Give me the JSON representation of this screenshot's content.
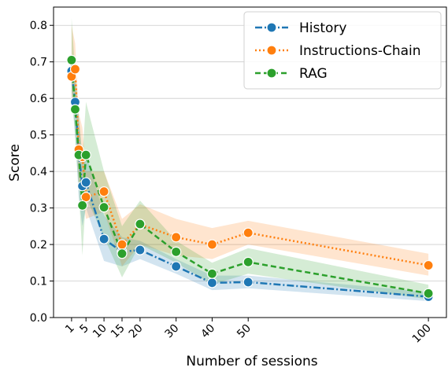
{
  "chart_data": {
    "type": "line",
    "title": "",
    "xlabel": "Number of sessions",
    "ylabel": "Score",
    "x_ticks": [
      1,
      5,
      10,
      15,
      20,
      30,
      40,
      50,
      100
    ],
    "y_ticks": [
      0.0,
      0.1,
      0.2,
      0.3,
      0.4,
      0.5,
      0.6,
      0.7,
      0.8
    ],
    "xlim": [
      -4,
      105
    ],
    "ylim": [
      0,
      0.85
    ],
    "grid": "horizontal",
    "legend_position": "top-right",
    "series": [
      {
        "name": "History",
        "color": "#1f77b4",
        "linestyle": "dashdot",
        "x": [
          1,
          2,
          3,
          4,
          5,
          10,
          15,
          20,
          30,
          40,
          50,
          100
        ],
        "y": [
          0.675,
          0.59,
          0.45,
          0.36,
          0.37,
          0.215,
          0.18,
          0.185,
          0.14,
          0.095,
          0.097,
          0.057
        ],
        "ci_low": [
          0.62,
          0.5,
          0.33,
          0.25,
          0.3,
          0.155,
          0.14,
          0.16,
          0.12,
          0.075,
          0.08,
          0.045
        ],
        "ci_high": [
          0.72,
          0.67,
          0.55,
          0.44,
          0.45,
          0.28,
          0.22,
          0.21,
          0.16,
          0.115,
          0.115,
          0.07
        ]
      },
      {
        "name": "Instructions-Chain",
        "color": "#ff7f0e",
        "linestyle": "dotted",
        "x": [
          1,
          2,
          3,
          4,
          5,
          10,
          15,
          20,
          30,
          40,
          50,
          100
        ],
        "y": [
          0.66,
          0.68,
          0.46,
          0.44,
          0.33,
          0.345,
          0.2,
          0.255,
          0.22,
          0.2,
          0.232,
          0.143
        ],
        "ci_low": [
          0.6,
          0.6,
          0.36,
          0.33,
          0.27,
          0.29,
          0.14,
          0.2,
          0.17,
          0.16,
          0.2,
          0.115
        ],
        "ci_high": [
          0.8,
          0.75,
          0.56,
          0.52,
          0.4,
          0.4,
          0.27,
          0.31,
          0.27,
          0.245,
          0.265,
          0.175
        ]
      },
      {
        "name": "RAG",
        "color": "#2ca02c",
        "linestyle": "dashed",
        "x": [
          1,
          2,
          3,
          4,
          5,
          10,
          15,
          20,
          30,
          40,
          50,
          100
        ],
        "y": [
          0.705,
          0.57,
          0.445,
          0.307,
          0.445,
          0.302,
          0.175,
          0.256,
          0.18,
          0.12,
          0.152,
          0.066
        ],
        "ci_low": [
          0.62,
          0.49,
          0.35,
          0.17,
          0.33,
          0.22,
          0.11,
          0.2,
          0.15,
          0.09,
          0.12,
          0.05
        ],
        "ci_high": [
          0.82,
          0.67,
          0.55,
          0.44,
          0.59,
          0.4,
          0.25,
          0.32,
          0.21,
          0.15,
          0.19,
          0.09
        ]
      }
    ]
  }
}
